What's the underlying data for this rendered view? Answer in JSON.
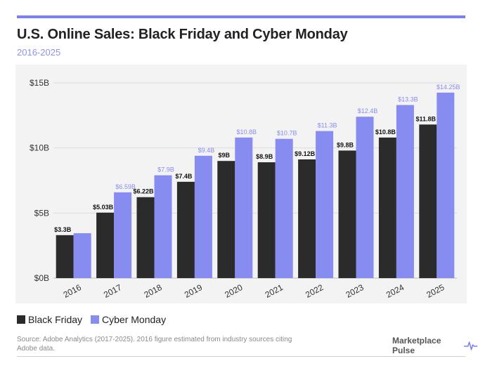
{
  "header": {
    "title": "U.S. Online Sales: Black Friday and Cyber Monday",
    "subtitle": "2016-2025"
  },
  "colors": {
    "black_friday": "#2b2b2b",
    "cyber_monday": "#878cf1",
    "accent": "#7b82ee",
    "panel_bg": "#f3f3f3"
  },
  "chart_data": {
    "type": "bar",
    "categories": [
      "2016",
      "2017",
      "2018",
      "2019",
      "2020",
      "2021",
      "2022",
      "2023",
      "2024",
      "2025"
    ],
    "series": [
      {
        "name": "Black Friday",
        "values": [
          3.3,
          5.03,
          6.22,
          7.4,
          9,
          8.9,
          9.12,
          9.8,
          10.8,
          11.8
        ],
        "labels": [
          "$3.3B",
          "$5.03B",
          "$6.22B",
          "$7.4B",
          "$9B",
          "$8.9B",
          "$9.12B",
          "$9.8B",
          "$10.8B",
          "$11.8B"
        ]
      },
      {
        "name": "Cyber Monday",
        "values": [
          3.45,
          6.59,
          7.9,
          9.4,
          10.8,
          10.7,
          11.3,
          12.4,
          13.3,
          14.25
        ],
        "labels": [
          "",
          "$6.59B",
          "$7.9B",
          "$9.4B",
          "$10.8B",
          "$10.7B",
          "$11.3B",
          "$12.4B",
          "$13.3B",
          "$14.25B"
        ]
      }
    ],
    "ylim": [
      0,
      15
    ],
    "yticks": [
      0,
      5,
      10,
      15
    ],
    "ytick_labels": [
      "$0B",
      "$5B",
      "$10B",
      "$15B"
    ],
    "grid": true,
    "legend": "bottom-left"
  },
  "legend": {
    "black_friday": "Black Friday",
    "cyber_monday": "Cyber Monday"
  },
  "footer": {
    "source": "Source: Adobe Analytics (2017-2025). 2016 figure estimated from industry sources citing Adobe data.",
    "brand": "Marketplace Pulse",
    "brand_icon": "pulse-line-icon"
  }
}
